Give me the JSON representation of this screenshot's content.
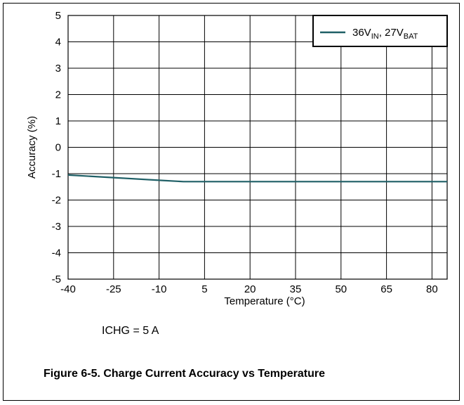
{
  "chart_data": {
    "type": "line",
    "x": [
      -40,
      -25,
      -10,
      -2,
      5,
      20,
      35,
      50,
      65,
      80,
      85
    ],
    "series": [
      {
        "name": "36V_IN, 27V_BAT",
        "name_parts": [
          {
            "text": "36V"
          },
          {
            "text": "IN",
            "sub": true
          },
          {
            "text": ", 27V"
          },
          {
            "text": "BAT",
            "sub": true
          }
        ],
        "values": [
          -1.05,
          -1.15,
          -1.25,
          -1.3,
          -1.3,
          -1.3,
          -1.3,
          -1.3,
          -1.3,
          -1.3,
          -1.3
        ],
        "color": "#1f5f66"
      }
    ],
    "xlabel": "Temperature (°C)",
    "ylabel": "Accuracy (%)",
    "xlim": [
      -40,
      85
    ],
    "ylim": [
      -5,
      5
    ],
    "xticks": [
      -40,
      -25,
      -10,
      5,
      20,
      35,
      50,
      65,
      80
    ],
    "yticks": [
      -5,
      -4,
      -3,
      -2,
      -1,
      0,
      1,
      2,
      3,
      4,
      5
    ],
    "grid": true,
    "legend_position": "top-right"
  },
  "condition_text": "ICHG = 5 A",
  "caption": "Figure 6-5. Charge Current Accuracy vs Temperature"
}
